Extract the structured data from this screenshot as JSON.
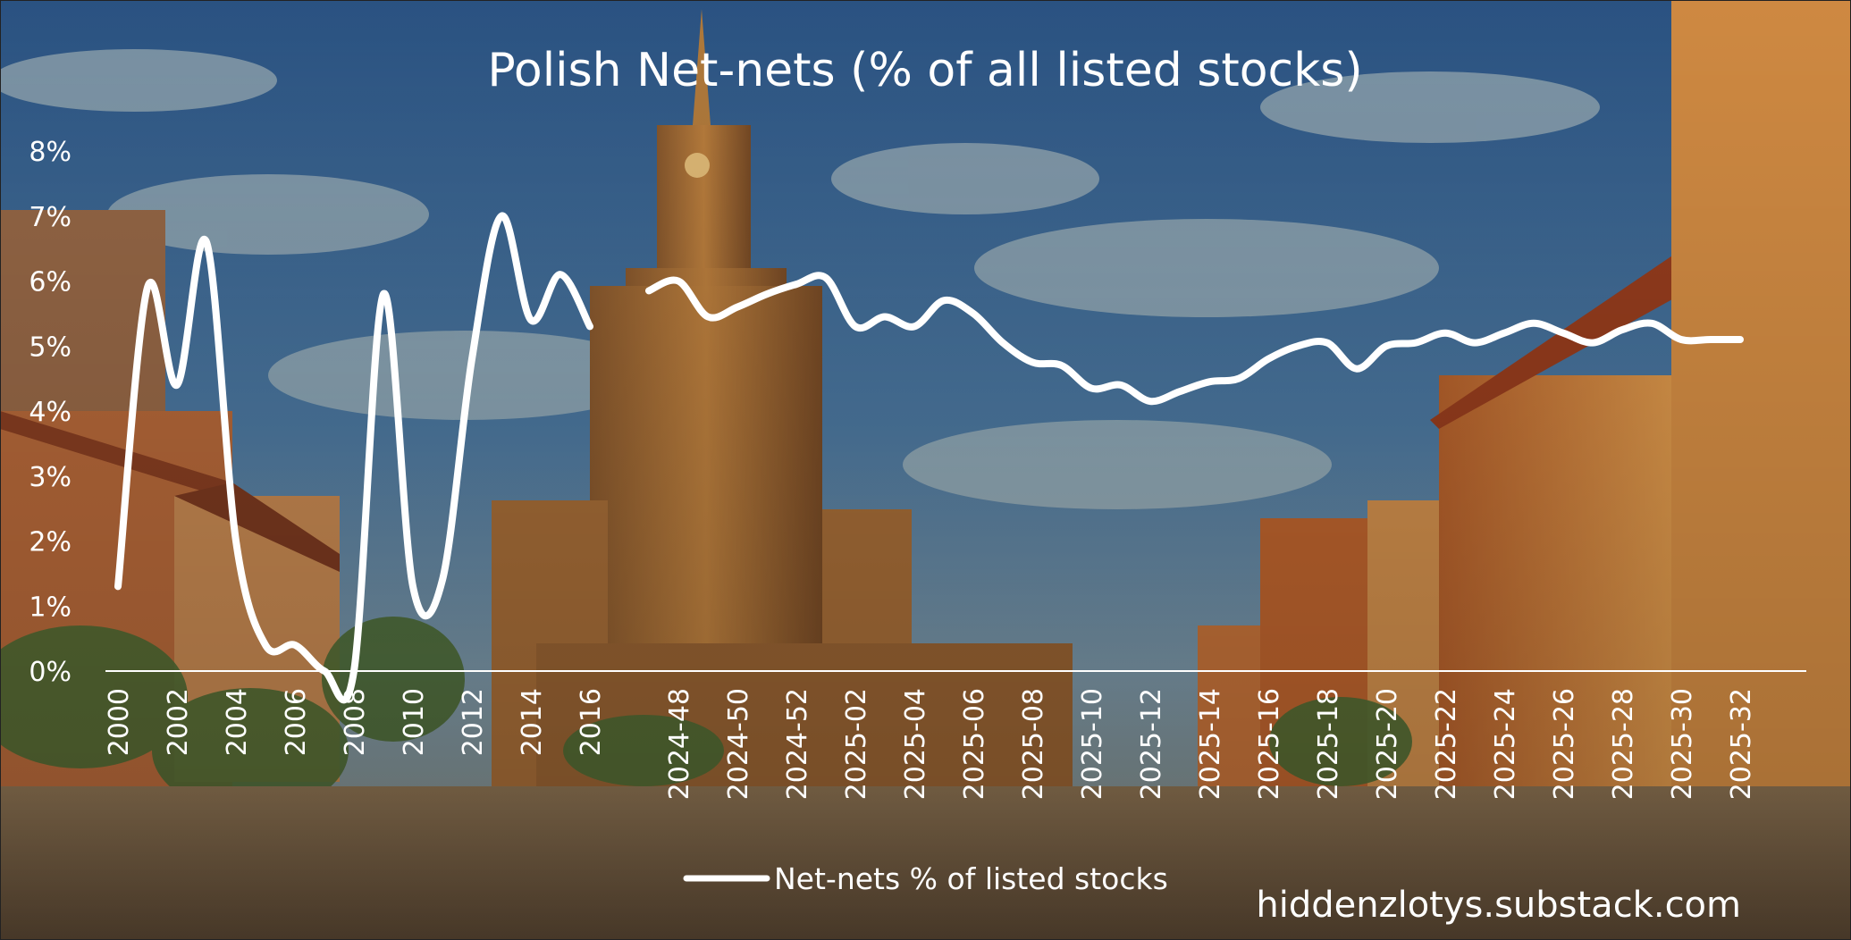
{
  "colors": {
    "line": "#ffffff",
    "text": "#ffffff",
    "sky_top": "#2d5a8e",
    "sky_mid": "#5a85a8",
    "cloud": "#b9c7c4",
    "palace": "#b7793a",
    "palace_dark": "#7a4a22",
    "building_warm": "#c9682f",
    "building_orange": "#d88a3f",
    "tree": "#4d6b33",
    "plaza": "#9c7a52"
  },
  "chart_data": {
    "type": "line",
    "title": "Polish Net-nets (% of all listed stocks)",
    "y_tick_labels": [
      "0%",
      "1%",
      "2%",
      "3%",
      "4%",
      "5%",
      "6%",
      "7%",
      "8%"
    ],
    "ylim": [
      0,
      8
    ],
    "grid": false,
    "legend_position": "bottom-center",
    "x_segment_gap_after": "2016",
    "x_tick_labels": [
      "2000",
      "2002",
      "2004",
      "2006",
      "2008",
      "2010",
      "2012",
      "2014",
      "2016",
      "2024-48",
      "2024-50",
      "2024-52",
      "2025-02",
      "2025-04",
      "2025-06",
      "2025-08",
      "2025-10",
      "2025-12",
      "2025-14",
      "2025-16",
      "2025-18",
      "2025-20",
      "2025-22",
      "2025-24",
      "2025-26",
      "2025-28",
      "2025-30",
      "2025-32"
    ],
    "series": [
      {
        "name": "Net-nets % of listed stocks",
        "segments": [
          {
            "x": [
              "2000",
              "2001",
              "2002",
              "2003",
              "2004",
              "2005",
              "2006",
              "2007",
              "2008",
              "2009",
              "2010",
              "2011",
              "2012",
              "2013",
              "2014",
              "2015",
              "2016"
            ],
            "values": [
              1.3,
              5.9,
              4.4,
              6.6,
              2.0,
              0.4,
              0.4,
              0.0,
              0.0,
              5.8,
              1.3,
              1.4,
              4.8,
              7.0,
              5.4,
              6.1,
              5.3
            ]
          },
          {
            "x": [
              "2024-47",
              "2024-48",
              "2024-49",
              "2024-50",
              "2024-51",
              "2024-52",
              "2025-01",
              "2025-02",
              "2025-03",
              "2025-04",
              "2025-05",
              "2025-06",
              "2025-07",
              "2025-08",
              "2025-09",
              "2025-10",
              "2025-11",
              "2025-12",
              "2025-13",
              "2025-14",
              "2025-15",
              "2025-16",
              "2025-17",
              "2025-18",
              "2025-19",
              "2025-20",
              "2025-21",
              "2025-22",
              "2025-23",
              "2025-24",
              "2025-25",
              "2025-26",
              "2025-27",
              "2025-28",
              "2025-29",
              "2025-30",
              "2025-31",
              "2025-32"
            ],
            "values": [
              5.85,
              6.0,
              5.45,
              5.6,
              5.8,
              5.95,
              6.05,
              5.3,
              5.45,
              5.3,
              5.7,
              5.5,
              5.05,
              4.75,
              4.7,
              4.35,
              4.4,
              4.15,
              4.3,
              4.45,
              4.5,
              4.8,
              5.0,
              5.05,
              4.65,
              5.0,
              5.05,
              5.2,
              5.05,
              5.2,
              5.35,
              5.2,
              5.05,
              5.25,
              5.35,
              5.1,
              5.1,
              5.1
            ]
          }
        ]
      }
    ],
    "legend": [
      {
        "label": "Net-nets % of listed stocks"
      }
    ]
  },
  "watermark": "hiddenzlotys.substack.com"
}
